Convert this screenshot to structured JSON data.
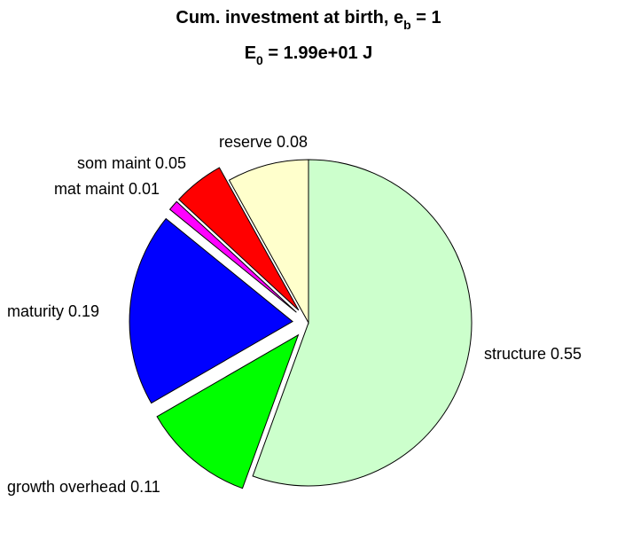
{
  "chart_data": {
    "type": "pie",
    "title_line1": {
      "text": "Cum. investment at birth, e",
      "subscript": "b",
      "suffix": " = 1"
    },
    "title_line2": {
      "text": "E",
      "subscript": "0",
      "suffix": " = 1.99e+01 J"
    },
    "slices": [
      {
        "label": "structure 0.55",
        "name": "structure",
        "value": 0.55,
        "color": "#CCFFCC",
        "exploded": false
      },
      {
        "label": "growth overhead 0.11",
        "name": "growth overhead",
        "value": 0.11,
        "color": "#00FF00",
        "exploded": true
      },
      {
        "label": "maturity 0.19",
        "name": "maturity",
        "value": 0.19,
        "color": "#0000FF",
        "exploded": true
      },
      {
        "label": "mat maint 0.01",
        "name": "mat maint",
        "value": 0.01,
        "color": "#FF00FF",
        "exploded": true
      },
      {
        "label": "som maint 0.05",
        "name": "som maint",
        "value": 0.05,
        "color": "#FF0000",
        "exploded": true
      },
      {
        "label": "reserve 0.08",
        "name": "reserve",
        "value": 0.08,
        "color": "#FFFFCC",
        "exploded": false
      }
    ],
    "direction": "clockwise",
    "start_angle": "12 o'clock"
  }
}
